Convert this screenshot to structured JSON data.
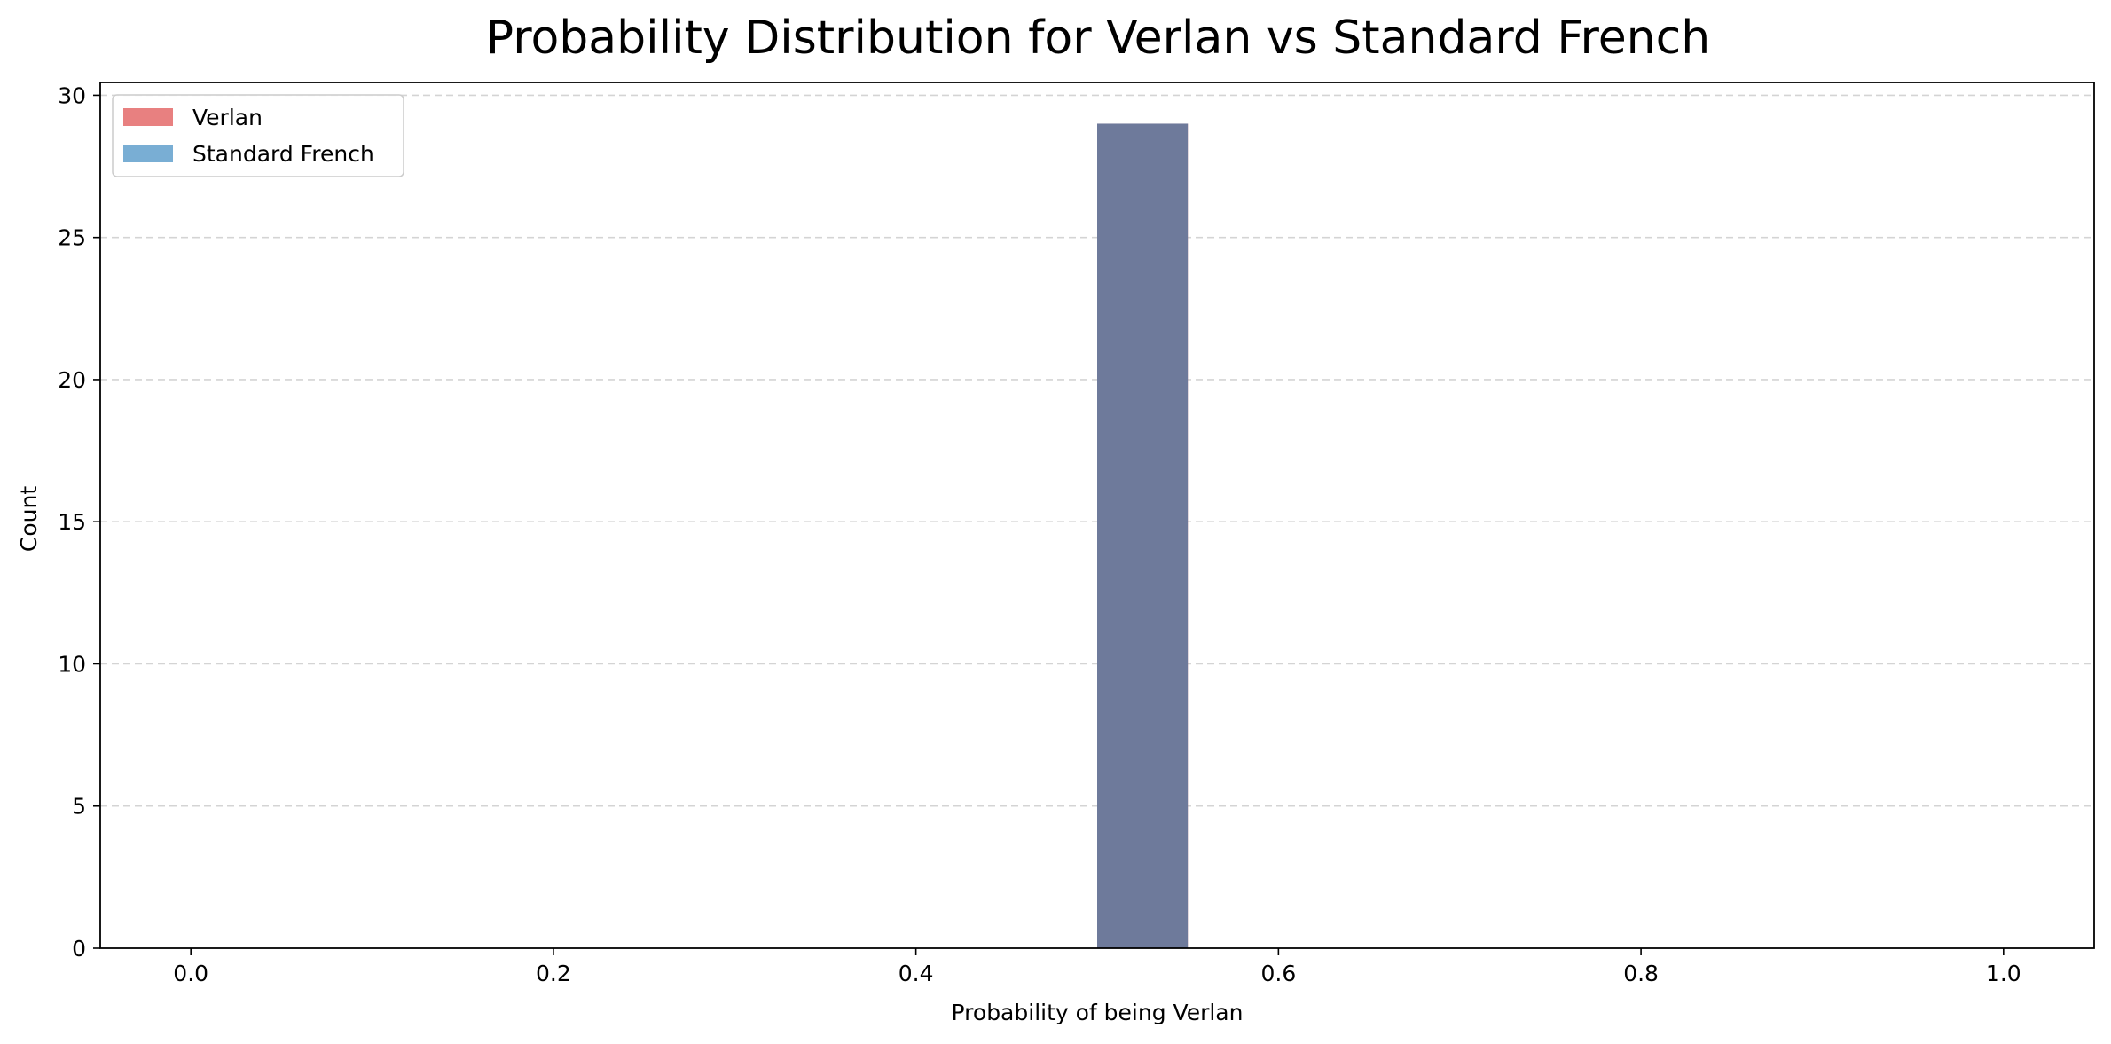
{
  "chart_data": {
    "type": "bar",
    "title": "Probability Distribution for Verlan vs Standard French",
    "xlabel": "Probability of being Verlan",
    "ylabel": "Count",
    "xlim": [
      -0.05,
      1.05
    ],
    "ylim": [
      0,
      30.45
    ],
    "xticks": [
      "0.0",
      "0.2",
      "0.4",
      "0.6",
      "0.8",
      "1.0"
    ],
    "xtick_values": [
      0.0,
      0.2,
      0.4,
      0.6,
      0.8,
      1.0
    ],
    "yticks": [
      "0",
      "5",
      "10",
      "15",
      "20",
      "25",
      "30"
    ],
    "ytick_values": [
      0,
      5,
      10,
      15,
      20,
      25,
      30
    ],
    "grid": "y-dashed",
    "legend_position": "upper-left",
    "overlap_color": "#6e7a9b",
    "series": [
      {
        "name": "Verlan",
        "color": "#e88080",
        "bins": [
          {
            "x0": 0.5,
            "x1": 0.55,
            "count": 29
          }
        ]
      },
      {
        "name": "Standard French",
        "color": "#79aed4",
        "bins": [
          {
            "x0": 0.5,
            "x1": 0.55,
            "count": 29
          }
        ]
      }
    ]
  }
}
